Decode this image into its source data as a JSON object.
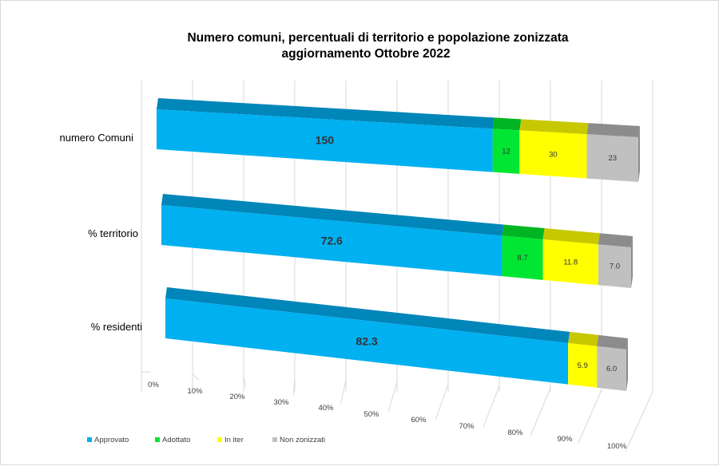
{
  "chart_data": {
    "type": "bar",
    "stacked": true,
    "orientation": "horizontal",
    "normalized_100_percent": true,
    "title": "Numero comuni, percentuali di territorio e popolazione zonizzata",
    "subtitle": "aggiornamento Ottobre 2022",
    "categories": [
      "numero Comuni",
      "% territorio",
      "% residenti"
    ],
    "x_tick_labels": [
      "0%",
      "10%",
      "20%",
      "30%",
      "40%",
      "50%",
      "60%",
      "70%",
      "80%",
      "90%",
      "100%"
    ],
    "series": [
      {
        "name": "Approvato",
        "color": "#00b0f0",
        "shade_color": "#0086b8",
        "values": [
          150,
          72.6,
          82.3
        ],
        "labels": [
          "150",
          "72.6",
          "82.3"
        ]
      },
      {
        "name": "Adottato",
        "color": "#00e632",
        "shade_color": "#00b524",
        "values": [
          12,
          8.7,
          0
        ],
        "labels": [
          "12",
          "8.7",
          ""
        ]
      },
      {
        "name": "In iter",
        "color": "#ffff00",
        "shade_color": "#c8c800",
        "values": [
          30,
          11.8,
          5.9
        ],
        "labels": [
          "30",
          "11.8",
          "5.9"
        ]
      },
      {
        "name": "Non zonizzati",
        "color": "#c0c0c0",
        "shade_color": "#8c8c8c",
        "values": [
          23,
          7.0,
          6.0
        ],
        "labels": [
          "23",
          "7.0",
          "6.0"
        ]
      }
    ],
    "legend_position": "bottom-left",
    "grid": true
  }
}
